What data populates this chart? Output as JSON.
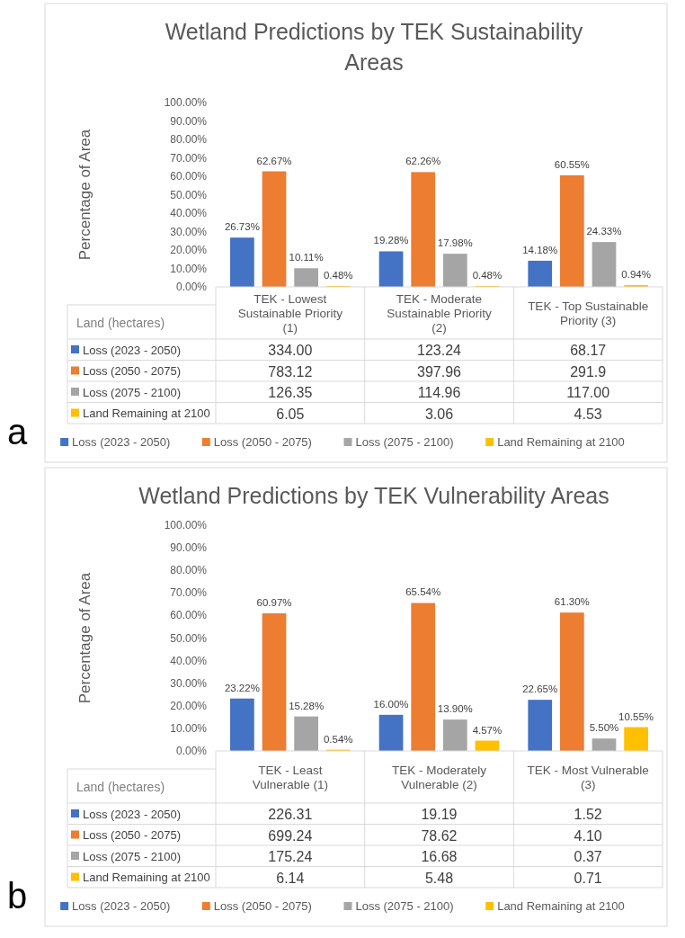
{
  "chart_data": [
    {
      "type": "bar",
      "title": "Wetland Predictions by TEK Sustainability Areas",
      "ylabel": "Percentage of Area",
      "categories": [
        "TEK - Lowest Sustainable Priority (1)",
        "TEK - Moderate Sustainable Priority (2)",
        "TEK - Top Sustainable Priority (3)"
      ],
      "series": [
        {
          "name": "Loss (2023 - 2050)",
          "color": "#4472c4",
          "values": [
            26.73,
            19.28,
            14.18
          ],
          "value_labels": [
            "26.73%",
            "19.28%",
            "14.18%"
          ]
        },
        {
          "name": "Loss (2050 - 2075)",
          "color": "#ed7d31",
          "values": [
            62.67,
            62.26,
            60.55
          ],
          "value_labels": [
            "62.67%",
            "62.26%",
            "60.55%"
          ]
        },
        {
          "name": "Loss (2075 - 2100)",
          "color": "#a5a5a5",
          "values": [
            10.11,
            17.98,
            24.33
          ],
          "value_labels": [
            "10.11%",
            "17.98%",
            "24.33%"
          ]
        },
        {
          "name": "Land Remaining at 2100",
          "color": "#ffc000",
          "values": [
            0.48,
            0.48,
            0.94
          ],
          "value_labels": [
            "0.48%",
            "0.48%",
            "0.94%"
          ]
        }
      ],
      "ylim": [
        0,
        100
      ],
      "yticks": [
        {
          "value": 0,
          "label": "0.00%"
        },
        {
          "value": 10,
          "label": "10.00%"
        },
        {
          "value": 20,
          "label": "20.00%"
        },
        {
          "value": 30,
          "label": "30.00%"
        },
        {
          "value": 40,
          "label": "40.00%"
        },
        {
          "value": 50,
          "label": "50.00%"
        },
        {
          "value": 60,
          "label": "60.00%"
        },
        {
          "value": 70,
          "label": "70.00%"
        },
        {
          "value": 80,
          "label": "80.00%"
        },
        {
          "value": 90,
          "label": "90.00%"
        },
        {
          "value": 100,
          "label": "100.00%"
        }
      ],
      "grid": false,
      "legend": "bottom",
      "annotations": [
        "a",
        "Land (hectares)",
        "334.00",
        "123.24",
        "68.17",
        "783.12",
        "397.96",
        "291.9",
        "126.35",
        "114.96",
        "117.00",
        "6.05",
        "3.06",
        "4.53"
      ]
    },
    {
      "type": "bar",
      "title": "Wetland Predictions by TEK Vulnerability Areas",
      "ylabel": "Percentage of Area",
      "categories": [
        "TEK - Least Vulnerable (1)",
        "TEK - Moderately Vulnerable (2)",
        "TEK - Most Vulnerable (3)"
      ],
      "series": [
        {
          "name": "Loss (2023 - 2050)",
          "color": "#4472c4",
          "values": [
            23.22,
            16.0,
            22.65
          ],
          "value_labels": [
            "23.22%",
            "16.00%",
            "22.65%"
          ]
        },
        {
          "name": "Loss (2050 - 2075)",
          "color": "#ed7d31",
          "values": [
            60.97,
            65.54,
            61.3
          ],
          "value_labels": [
            "60.97%",
            "65.54%",
            "61.30%"
          ]
        },
        {
          "name": "Loss (2075 - 2100)",
          "color": "#a5a5a5",
          "values": [
            15.28,
            13.9,
            5.5
          ],
          "value_labels": [
            "15.28%",
            "13.90%",
            "5.50%"
          ]
        },
        {
          "name": "Land Remaining at 2100",
          "color": "#ffc000",
          "values": [
            0.54,
            4.57,
            10.55
          ],
          "value_labels": [
            "0.54%",
            "4.57%",
            "10.55%"
          ]
        }
      ],
      "ylim": [
        0,
        100
      ],
      "yticks": [
        {
          "value": 0,
          "label": "0.00%"
        },
        {
          "value": 10,
          "label": "10.00%"
        },
        {
          "value": 20,
          "label": "20.00%"
        },
        {
          "value": 30,
          "label": "30.00%"
        },
        {
          "value": 40,
          "label": "40.00%"
        },
        {
          "value": 50,
          "label": "50.00%"
        },
        {
          "value": 60,
          "label": "60.00%"
        },
        {
          "value": 70,
          "label": "70.00%"
        },
        {
          "value": 80,
          "label": "80.00%"
        },
        {
          "value": 90,
          "label": "90.00%"
        },
        {
          "value": 100,
          "label": "100.00%"
        }
      ],
      "grid": false,
      "legend": "bottom",
      "annotations": [
        "b",
        "Land (hectares)",
        "226.31",
        "19.19",
        "1.52",
        "699.24",
        "78.62",
        "4.10",
        "175.24",
        "16.68",
        "0.37",
        "6.14",
        "5.48",
        "0.71"
      ]
    }
  ]
}
